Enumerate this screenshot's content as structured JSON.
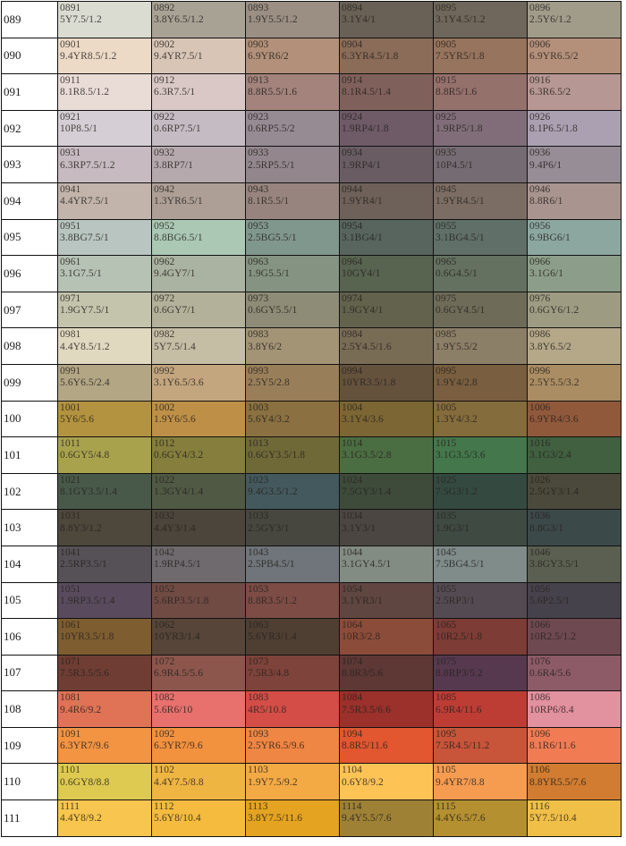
{
  "page": {
    "description": "Munsell color notation swatch table, rows 089-111, six swatches per row",
    "grid_line_color": "#111111",
    "label_column_background": "#ffffff"
  },
  "chart_data": {
    "type": "table",
    "columns": [
      "row-label",
      "swatch-1",
      "swatch-2",
      "swatch-3",
      "swatch-4",
      "swatch-5",
      "swatch-6"
    ],
    "cell_fields": [
      "code",
      "munsell_notation",
      "swatch_color_hex"
    ],
    "rows": [
      {
        "label": "089",
        "cells": [
          [
            "0891",
            "5Y7.5/1.2",
            "#dadbd1"
          ],
          [
            "0892",
            "3.8Y6.5/1.2",
            "#a7a294"
          ],
          [
            "0893",
            "1.9Y5.5/1.2",
            "#9b8f83"
          ],
          [
            "0894",
            "3.1Y4/1",
            "#696156"
          ],
          [
            "0895",
            "3.1Y4.5/1.2",
            "#6f675b"
          ],
          [
            "0896",
            "2.5Y6/1.2",
            "#a19b8a"
          ]
        ]
      },
      {
        "label": "090",
        "cells": [
          [
            "0901",
            "9.4YR8.5/1.2",
            "#ecd9c6"
          ],
          [
            "0902",
            "9.4YR7.5/1",
            "#d8c5b6"
          ],
          [
            "0903",
            "6.9YR6/2",
            "#b29079"
          ],
          [
            "0904",
            "6.3YR4.5/1.8",
            "#8a6c58"
          ],
          [
            "0905",
            "7.5YR5/1.8",
            "#97745d"
          ],
          [
            "0906",
            "6.9YR6.5/2",
            "#b4907a"
          ]
        ]
      },
      {
        "label": "091",
        "cells": [
          [
            "0911",
            "8.1R8.5/1.2",
            "#e9dbd6"
          ],
          [
            "0912",
            "6.3R7.5/1",
            "#d9c8c5"
          ],
          [
            "0913",
            "8.8R5.5/1.6",
            "#a3837c"
          ],
          [
            "0914",
            "8.1R4.5/1.4",
            "#80605a"
          ],
          [
            "0915",
            "8.8R5/1.6",
            "#95716c"
          ],
          [
            "0916",
            "6.3R6.5/2",
            "#b69793"
          ]
        ]
      },
      {
        "label": "092",
        "cells": [
          [
            "0921",
            "10P8.5/1",
            "#d5cfd5"
          ],
          [
            "0922",
            "0.6RP7.5/1",
            "#c5bcc3"
          ],
          [
            "0923",
            "0.6RP5.5/2",
            "#968a93"
          ],
          [
            "0924",
            "1.9RP4/1.8",
            "#6f5a68"
          ],
          [
            "0925",
            "1.9RP5/1.8",
            "#816d79"
          ],
          [
            "0926",
            "8.1P6.5/1.8",
            "#aaa0b1"
          ]
        ]
      },
      {
        "label": "093",
        "cells": [
          [
            "0931",
            "6.3RP7.5/1.2",
            "#c7bac0"
          ],
          [
            "0932",
            "3.8RP7/1",
            "#b6a9ae"
          ],
          [
            "0933",
            "2.5RP5.5/1",
            "#93878d"
          ],
          [
            "0934",
            "1.9RP4/1",
            "#695d63"
          ],
          [
            "0935",
            "10P4.5/1",
            "#756b72"
          ],
          [
            "0936",
            "9.4P6/1",
            "#968d96"
          ]
        ]
      },
      {
        "label": "094",
        "cells": [
          [
            "0941",
            "4.4YR7.5/1",
            "#c2b4ab"
          ],
          [
            "0942",
            "1.3YR6.5/1",
            "#ad9f96"
          ],
          [
            "0943",
            "8.1R5.5/1",
            "#98847e"
          ],
          [
            "0944",
            "1.9YR4/1",
            "#6e6159"
          ],
          [
            "0945",
            "1.9YR4.5/1",
            "#7c6d64"
          ],
          [
            "0946",
            "8.8R6/1",
            "#a9948f"
          ]
        ]
      },
      {
        "label": "095",
        "cells": [
          [
            "0951",
            "3.8BG7.5/1",
            "#b8c5c0"
          ],
          [
            "0952",
            "8.8BG6.5/1",
            "#aac8b4"
          ],
          [
            "0953",
            "2.5BG5.5/1",
            "#80978d"
          ],
          [
            "0954",
            "3.1BG4/1",
            "#57655e"
          ],
          [
            "0955",
            "3.1BG4.5/1",
            "#606f68"
          ],
          [
            "0956",
            "6.9BG6/1",
            "#8ca7a0"
          ]
        ]
      },
      {
        "label": "096",
        "cells": [
          [
            "0961",
            "3.1G7.5/1",
            "#b6c2b4"
          ],
          [
            "0962",
            "9.4GY7/1",
            "#aab3a1"
          ],
          [
            "0963",
            "1.9G5.5/1",
            "#859482"
          ],
          [
            "0964",
            "10GY4/1",
            "#586350"
          ],
          [
            "0965",
            "0.6G4.5/1",
            "#647160"
          ],
          [
            "0966",
            "3.1G6/1",
            "#8c9e89"
          ]
        ]
      },
      {
        "label": "097",
        "cells": [
          [
            "0971",
            "1.9GY7.5/1",
            "#c4c3ac"
          ],
          [
            "0972",
            "0.6GY7/1",
            "#b3b19a"
          ],
          [
            "0973",
            "0.6GY5.5/1",
            "#8e8c76"
          ],
          [
            "0974",
            "1.9GY4/1",
            "#63624d"
          ],
          [
            "0975",
            "0.6GY4.5/1",
            "#6e6c58"
          ],
          [
            "0976",
            "0.6GY6/1.2",
            "#9d9b82"
          ]
        ]
      },
      {
        "label": "098",
        "cells": [
          [
            "0981",
            "4.4Y8.5/1.2",
            "#e1d8c0"
          ],
          [
            "0982",
            "5Y7.5/1.4",
            "#c6bda5"
          ],
          [
            "0983",
            "3.8Y6/2",
            "#a39476"
          ],
          [
            "0984",
            "2.5Y4.5/1.6",
            "#796c55"
          ],
          [
            "0985",
            "1.9Y5.5/2",
            "#8c7f67"
          ],
          [
            "0986",
            "3.8Y6.5/2",
            "#b4a889"
          ]
        ]
      },
      {
        "label": "099",
        "cells": [
          [
            "0991",
            "5.6Y6.5/2.4",
            "#b3a685"
          ],
          [
            "0992",
            "3.1Y6.5/3.6",
            "#c3a57e"
          ],
          [
            "0993",
            "2.5Y5/2.8",
            "#997f59"
          ],
          [
            "0994",
            "10YR3.5/1.8",
            "#65523d"
          ],
          [
            "0995",
            "1.9Y4/2.8",
            "#795f3f"
          ],
          [
            "0996",
            "2.5Y5.5/3.2",
            "#ab8d63"
          ]
        ]
      },
      {
        "label": "100",
        "cells": [
          [
            "1001",
            "5Y6/5.6",
            "#b39340"
          ],
          [
            "1002",
            "1.9Y6/5.6",
            "#be9047"
          ],
          [
            "1003",
            "5.6Y4/3.2",
            "#8b7141"
          ],
          [
            "1004",
            "3.1Y4/3.6",
            "#7c6634"
          ],
          [
            "1005",
            "1.3Y4/3.2",
            "#856c3c"
          ],
          [
            "1006",
            "6.9YR4/3.6",
            "#91593b"
          ]
        ]
      },
      {
        "label": "101",
        "cells": [
          [
            "1011",
            "0.6GY5/4.8",
            "#a9a24d"
          ],
          [
            "1012",
            "0.6GY4/3.2",
            "#857e3c"
          ],
          [
            "1013",
            "0.6GY3.5/1.8",
            "#6f6938"
          ],
          [
            "1014",
            "3.1G3.5/2.8",
            "#4b6d42"
          ],
          [
            "1015",
            "3.1G3.5/3.6",
            "#44774b"
          ],
          [
            "1016",
            "3.1G3/2.4",
            "#40603f"
          ]
        ]
      },
      {
        "label": "102",
        "cells": [
          [
            "1021",
            "8.1GY3.5/1.4",
            "#485949"
          ],
          [
            "1022",
            "1.3GY4/1.4",
            "#505944"
          ],
          [
            "1023",
            "9.4G3.5/1.2",
            "#44595d"
          ],
          [
            "1024",
            "7.5GY3/1.4",
            "#3e4b3b"
          ],
          [
            "1025",
            "7.5G3/1.2",
            "#344a40"
          ],
          [
            "1026",
            "2.5GY3/1.4",
            "#4a493b"
          ]
        ]
      },
      {
        "label": "103",
        "cells": [
          [
            "1031",
            "8.8Y3/1.2",
            "#4d473c"
          ],
          [
            "1032",
            "4.4Y3/1.4",
            "#4b453b"
          ],
          [
            "1033",
            "2.5GY3/1",
            "#47473f"
          ],
          [
            "1034",
            "3.1Y3/1",
            "#4b4641"
          ],
          [
            "1035",
            "1.9G3/1",
            "#3f4a43"
          ],
          [
            "1036",
            "8.8G3/1",
            "#3c4949"
          ]
        ]
      },
      {
        "label": "104",
        "cells": [
          [
            "1041",
            "2.5RP3.5/1",
            "#565156"
          ],
          [
            "1042",
            "1.9RP4.5/1",
            "#6f6a6e"
          ],
          [
            "1043",
            "2.5PB4.5/1",
            "#6f757a"
          ],
          [
            "1044",
            "3.1GY4.5/1",
            "#838c82"
          ],
          [
            "1045",
            "7.5BG4.5/1",
            "#7f8c8a"
          ],
          [
            "1046",
            "3.8GY3.5/1",
            "#5b5f51"
          ]
        ]
      },
      {
        "label": "105",
        "cells": [
          [
            "1051",
            "1.9RP3.5/1.4",
            "#594b5d"
          ],
          [
            "1052",
            "5.6RP3.5/1.8",
            "#704b44"
          ],
          [
            "1053",
            "8.8R3.5/1.2",
            "#7c4c45"
          ],
          [
            "1054",
            "3.1YR3/1",
            "#604641"
          ],
          [
            "1055",
            "2.5RP3/1",
            "#544b52"
          ],
          [
            "1056",
            "5.6P2.5/1",
            "#46424c"
          ]
        ]
      },
      {
        "label": "106",
        "cells": [
          [
            "1061",
            "10YR3.5/1.8",
            "#7e5d30"
          ],
          [
            "1062",
            "10YR3/1.4",
            "#564538"
          ],
          [
            "1063",
            "5.6YR3/1.4",
            "#4f3f33"
          ],
          [
            "1064",
            "10R3/2.8",
            "#8c4c3a"
          ],
          [
            "1065",
            "10R2.5/1.8",
            "#7d3c36"
          ],
          [
            "1066",
            "10R2.5/1.2",
            "#6f4951"
          ]
        ]
      },
      {
        "label": "107",
        "cells": [
          [
            "1071",
            "7.5R3.5/5.6",
            "#6f3d33"
          ],
          [
            "1072",
            "6.9R4.5/5.6",
            "#8c564c"
          ],
          [
            "1073",
            "7.5R3/4.8",
            "#7e433a"
          ],
          [
            "1074",
            "8.8R3/5.6",
            "#5d3835"
          ],
          [
            "1075",
            "8.8RP3/5.2",
            "#56394f"
          ],
          [
            "1076",
            "0.6R4/5.6",
            "#8d5b67"
          ]
        ]
      },
      {
        "label": "108",
        "cells": [
          [
            "1081",
            "9.4R6/9.2",
            "#e07256"
          ],
          [
            "1082",
            "5.6R6/10",
            "#e8706d"
          ],
          [
            "1083",
            "4R5/10.8",
            "#d54d47"
          ],
          [
            "1084",
            "7.5R3.5/6.6",
            "#9c302b"
          ],
          [
            "1085",
            "6.9R4/11.6",
            "#bd3d35"
          ],
          [
            "1086",
            "10RP6/8.4",
            "#e2919f"
          ]
        ]
      },
      {
        "label": "109",
        "cells": [
          [
            "1091",
            "6.3YR7/9.6",
            "#f39442"
          ],
          [
            "1092",
            "6.3YR7/9.6",
            "#f2913e"
          ],
          [
            "1093",
            "2.5YR6.5/9.6",
            "#f08643"
          ],
          [
            "1094",
            "8.8R5/11.6",
            "#e25630"
          ],
          [
            "1095",
            "7.5R4.5/11.2",
            "#c8543a"
          ],
          [
            "1096",
            "8.1R6/11.6",
            "#f17c54"
          ]
        ]
      },
      {
        "label": "110",
        "cells": [
          [
            "1101",
            "0.6GY8/8.8",
            "#dec951"
          ],
          [
            "1102",
            "4.4Y7.5/8.8",
            "#efb542"
          ],
          [
            "1103",
            "1.9Y7.5/9.2",
            "#f4aa44"
          ],
          [
            "1104",
            "0.6Y8/9.2",
            "#fdc355"
          ],
          [
            "1105",
            "9.4YR7/8.8",
            "#f59c51"
          ],
          [
            "1106",
            "8.8YR5.5/7.6",
            "#d17c30"
          ]
        ]
      },
      {
        "label": "111",
        "cells": [
          [
            "1111",
            "4.4Y8/9.2",
            "#f8c64e"
          ],
          [
            "1112",
            "5.6Y8/10.4",
            "#f4bb3f"
          ],
          [
            "1113",
            "3.8Y7.5/11.6",
            "#e4a320"
          ],
          [
            "1114",
            "9.4Y5.5/7.6",
            "#9e8135"
          ],
          [
            "1115",
            "4.4Y6.5/7.6",
            "#b49031"
          ],
          [
            "1116",
            "5Y7.5/10.4",
            "#f0bf47"
          ]
        ]
      }
    ]
  }
}
